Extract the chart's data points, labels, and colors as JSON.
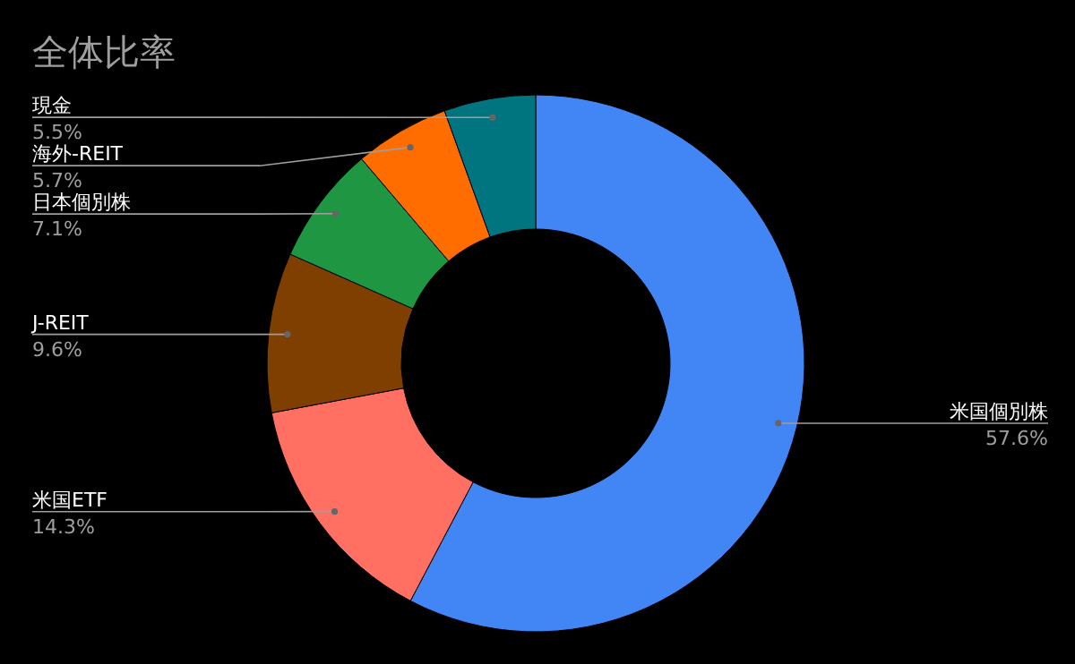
{
  "chart_data": {
    "type": "donut",
    "title": "全体比率",
    "categories": [
      "米国個別株",
      "米国ETF",
      "J-REIT",
      "日本個別株",
      "海外-REIT",
      "現金"
    ],
    "values": [
      57.6,
      14.3,
      9.6,
      7.1,
      5.7,
      5.5
    ],
    "colors": [
      "#4285f4",
      "#ff7062",
      "#7f3f00",
      "#1f9642",
      "#ff6d00",
      "#00747f"
    ],
    "value_labels": [
      "57.6%",
      "14.3%",
      "9.6%",
      "7.1%",
      "5.7%",
      "5.5%"
    ]
  }
}
